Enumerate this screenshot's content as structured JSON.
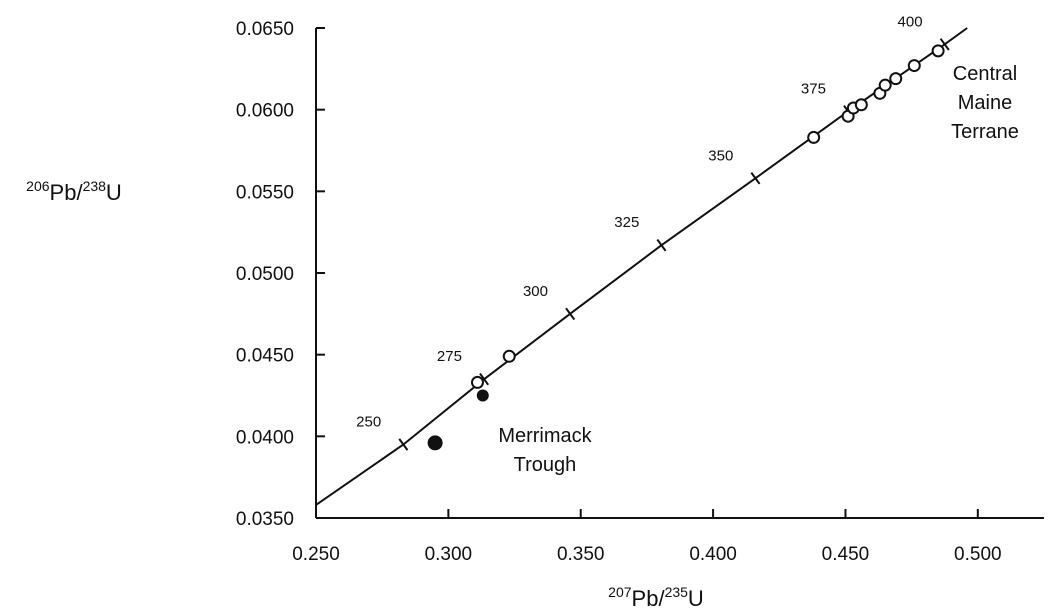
{
  "chart_data": {
    "type": "scatter",
    "title": "",
    "xlabel": {
      "sup1": "207",
      "base1": "Pb/",
      "sup2": "235",
      "base2": "U"
    },
    "ylabel": {
      "sup1": "206",
      "base1": "Pb/",
      "sup2": "238",
      "base2": "U"
    },
    "xlim": [
      0.25,
      0.525
    ],
    "ylim": [
      0.035,
      0.065
    ],
    "x_ticks": [
      0.25,
      0.3,
      0.35,
      0.4,
      0.45,
      0.5
    ],
    "x_tick_labels": [
      "0.250",
      "0.300",
      "0.350",
      "0.400",
      "0.450",
      "0.500"
    ],
    "y_ticks": [
      0.035,
      0.04,
      0.045,
      0.05,
      0.055,
      0.06,
      0.065
    ],
    "y_tick_labels": [
      "0.0350",
      "0.0400",
      "0.0450",
      "0.0500",
      "0.0550",
      "0.0600",
      "0.0650"
    ],
    "grid": false,
    "concordia": {
      "curve": [
        {
          "x": 0.25,
          "y": 0.0358
        },
        {
          "x": 0.283,
          "y": 0.0395
        },
        {
          "x": 0.3135,
          "y": 0.0435
        },
        {
          "x": 0.346,
          "y": 0.0475
        },
        {
          "x": 0.3805,
          "y": 0.0517
        },
        {
          "x": 0.416,
          "y": 0.0558
        },
        {
          "x": 0.451,
          "y": 0.0599
        },
        {
          "x": 0.4875,
          "y": 0.064
        },
        {
          "x": 0.496,
          "y": 0.065
        }
      ],
      "age_marks": [
        {
          "age": "250",
          "x": 0.283,
          "y": 0.0395
        },
        {
          "age": "275",
          "x": 0.3135,
          "y": 0.0435
        },
        {
          "age": "300",
          "x": 0.346,
          "y": 0.0475
        },
        {
          "age": "325",
          "x": 0.3805,
          "y": 0.0517
        },
        {
          "age": "350",
          "x": 0.416,
          "y": 0.0558
        },
        {
          "age": "375",
          "x": 0.451,
          "y": 0.0599
        },
        {
          "age": "400",
          "x": 0.4875,
          "y": 0.064
        }
      ]
    },
    "series": [
      {
        "marker": "open-circle",
        "points": [
          {
            "x": 0.311,
            "y": 0.0433
          },
          {
            "x": 0.323,
            "y": 0.0449
          },
          {
            "x": 0.438,
            "y": 0.0583
          },
          {
            "x": 0.451,
            "y": 0.0596
          },
          {
            "x": 0.453,
            "y": 0.0601
          },
          {
            "x": 0.456,
            "y": 0.0603
          },
          {
            "x": 0.463,
            "y": 0.061
          },
          {
            "x": 0.465,
            "y": 0.0615
          },
          {
            "x": 0.469,
            "y": 0.0619
          },
          {
            "x": 0.476,
            "y": 0.0627
          },
          {
            "x": 0.485,
            "y": 0.0636
          }
        ]
      },
      {
        "marker": "filled-circle",
        "points": [
          {
            "x": 0.313,
            "y": 0.0425,
            "size": "small"
          },
          {
            "x": 0.295,
            "y": 0.0396,
            "size": "large"
          }
        ]
      }
    ],
    "annotations": {
      "central_maine": [
        "Central",
        "Maine",
        "Terrane"
      ],
      "merrimack": [
        "Merrimack",
        "Trough"
      ]
    }
  }
}
